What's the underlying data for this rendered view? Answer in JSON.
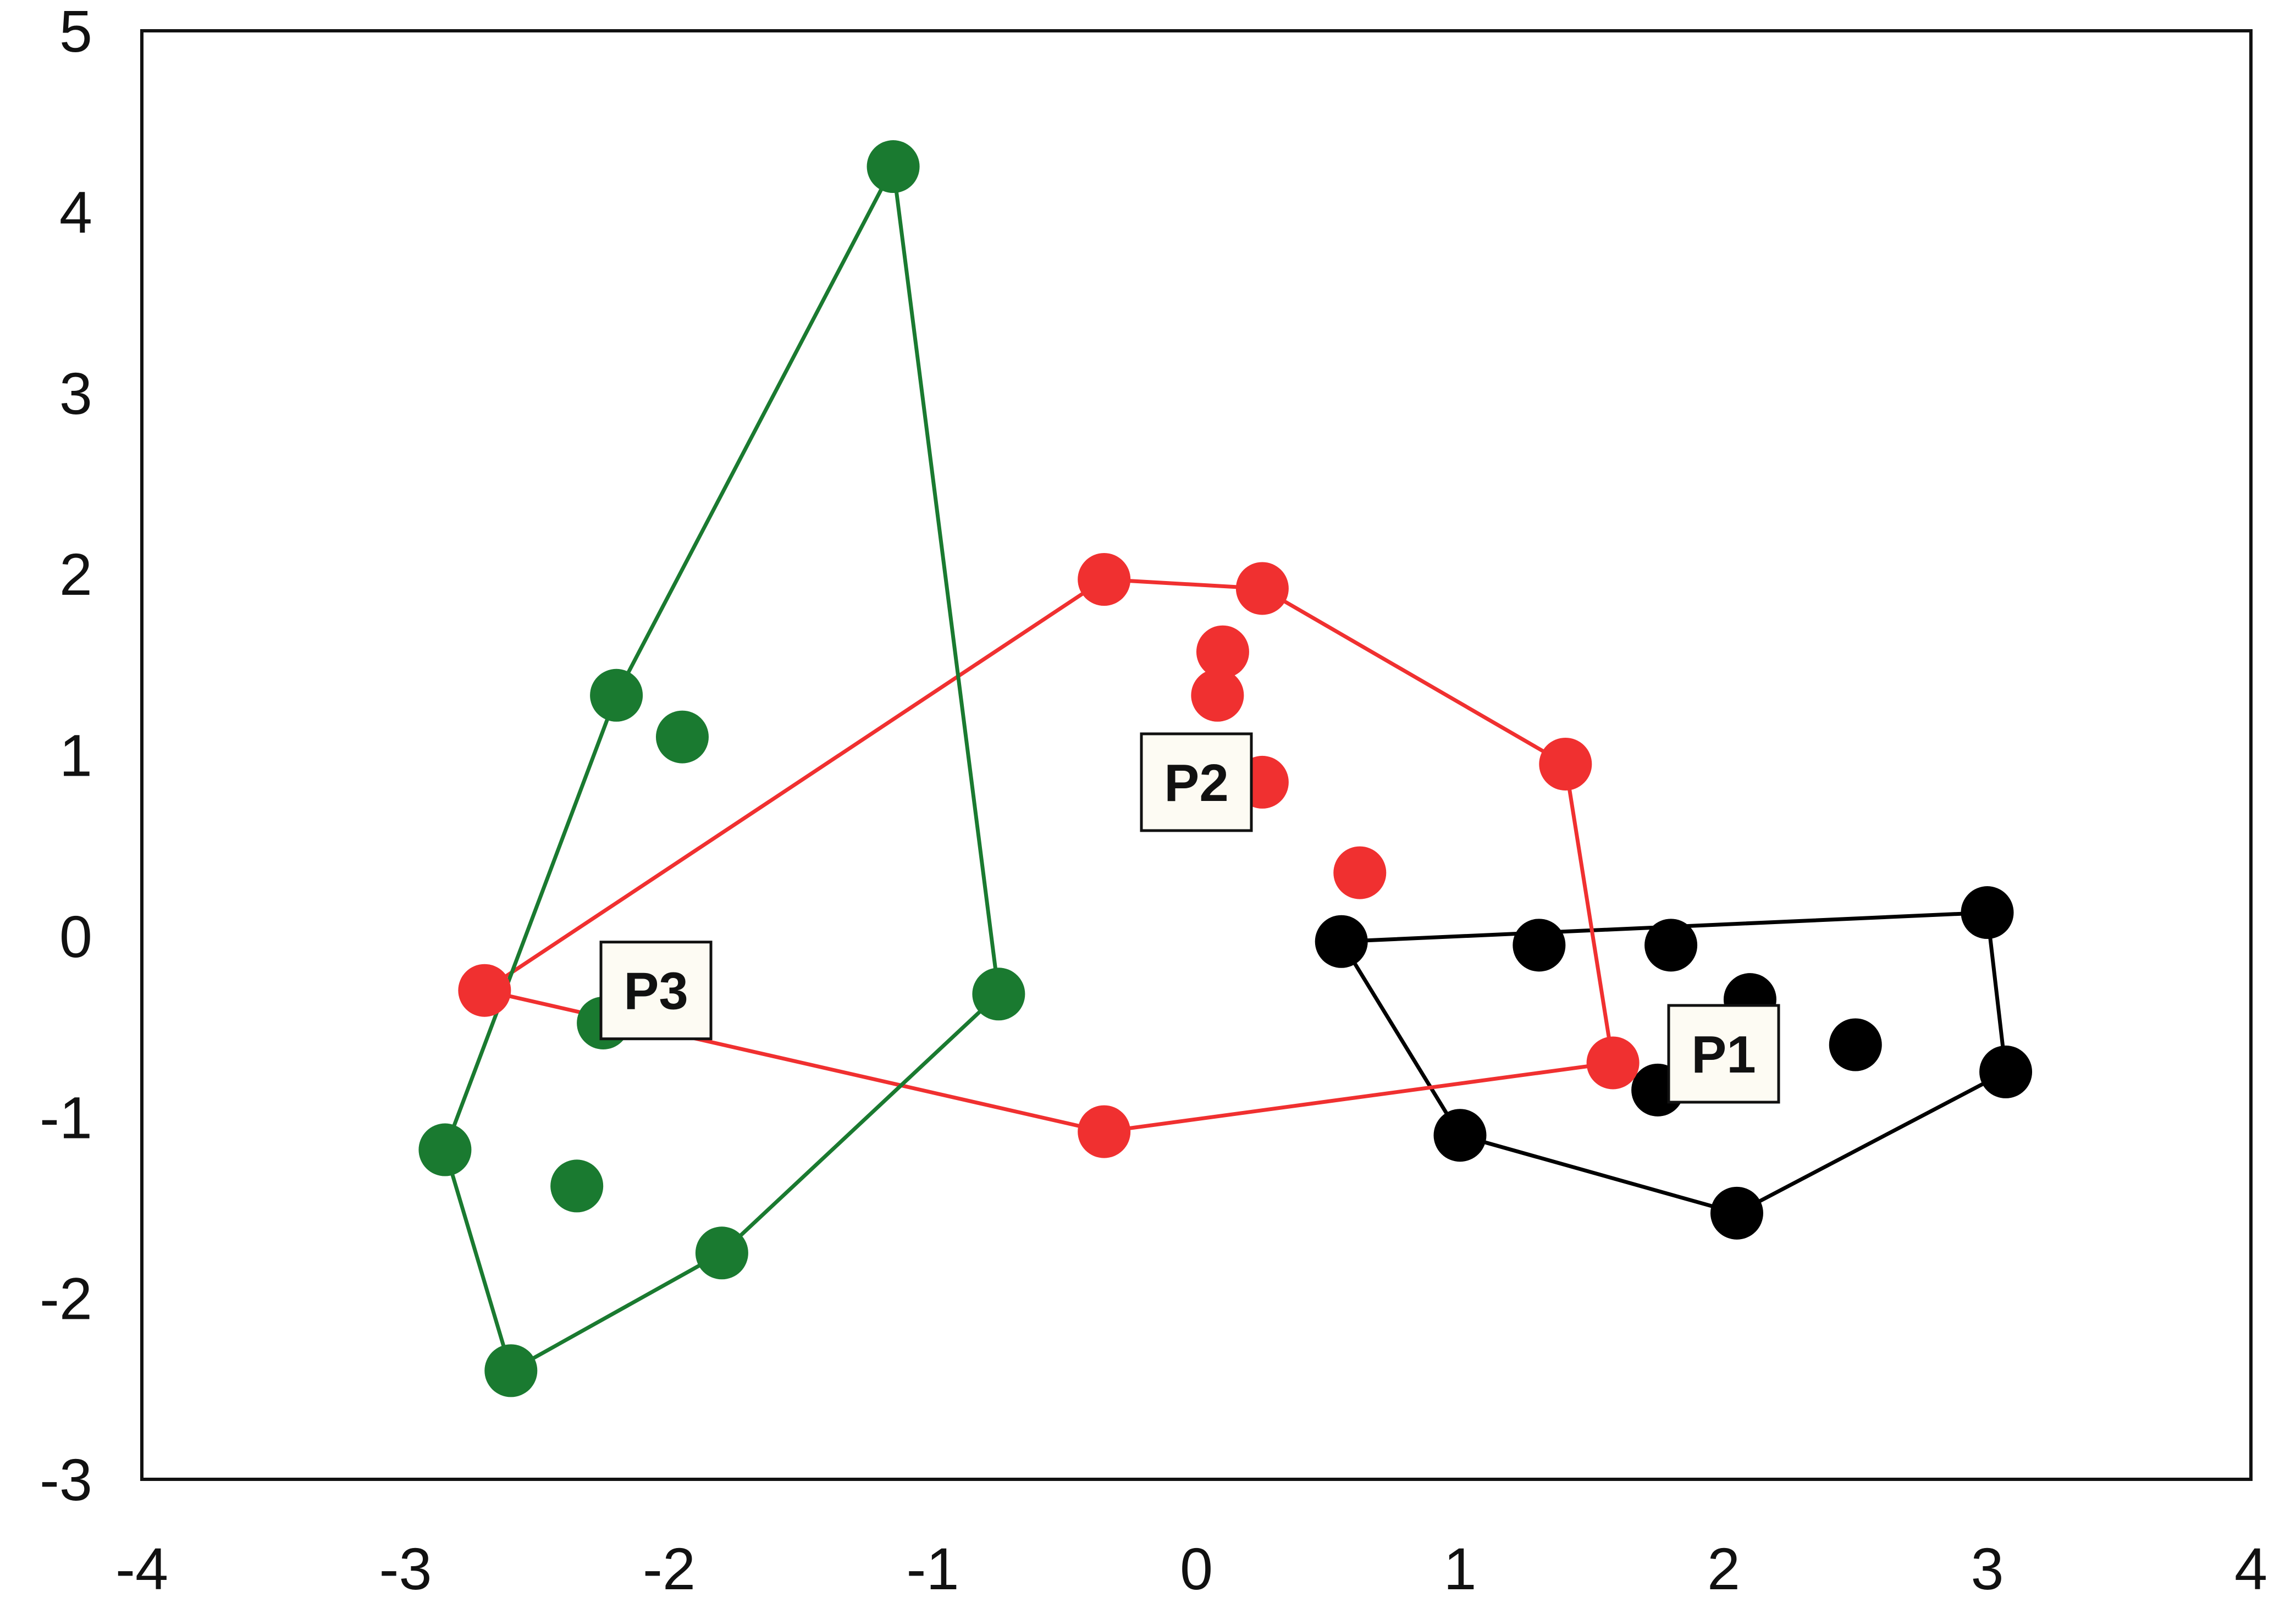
{
  "chart_data": {
    "type": "scatter",
    "title": "",
    "xlabel": "",
    "ylabel": "",
    "xlim": [
      -4,
      4
    ],
    "ylim": [
      -3,
      5
    ],
    "xticks": [
      "-4",
      "-3",
      "-2",
      "-1",
      "0",
      "1",
      "2",
      "3",
      "4"
    ],
    "yticks": [
      "-3",
      "-2",
      "-1",
      "0",
      "1",
      "2",
      "3",
      "4",
      "5"
    ],
    "grid": false,
    "legend": "none",
    "hull_outlines": true,
    "series": [
      {
        "label": "P1",
        "color": "#000000",
        "label_position": [
          2.0,
          -0.65
        ],
        "points": [
          [
            0.55,
            -0.03
          ],
          [
            1.3,
            -0.05
          ],
          [
            1.8,
            -0.05
          ],
          [
            2.1,
            -0.35
          ],
          [
            2.5,
            -0.6
          ],
          [
            1.75,
            -0.85
          ],
          [
            1.0,
            -1.1
          ],
          [
            2.05,
            -1.53
          ],
          [
            3.0,
            0.13
          ],
          [
            3.07,
            -0.75
          ]
        ],
        "hull": [
          [
            0.55,
            -0.03
          ],
          [
            3.0,
            0.13
          ],
          [
            3.07,
            -0.75
          ],
          [
            2.05,
            -1.53
          ],
          [
            1.0,
            -1.1
          ]
        ]
      },
      {
        "label": "P2",
        "color": "#f03030",
        "label_position": [
          0.0,
          0.85
        ],
        "points": [
          [
            -0.35,
            1.97
          ],
          [
            0.25,
            1.92
          ],
          [
            0.1,
            1.57
          ],
          [
            0.08,
            1.33
          ],
          [
            0.25,
            0.85
          ],
          [
            0.62,
            0.35
          ],
          [
            1.4,
            0.95
          ],
          [
            1.58,
            -0.7
          ],
          [
            -0.35,
            -1.08
          ],
          [
            -2.7,
            -0.3
          ]
        ],
        "hull": [
          [
            -0.35,
            1.97
          ],
          [
            0.25,
            1.92
          ],
          [
            1.4,
            0.95
          ],
          [
            1.58,
            -0.7
          ],
          [
            -0.35,
            -1.08
          ],
          [
            -2.7,
            -0.3
          ]
        ]
      },
      {
        "label": "P3",
        "color": "#1a7a30",
        "label_position": [
          -2.05,
          -0.3
        ],
        "points": [
          [
            -1.15,
            4.25
          ],
          [
            -2.2,
            1.33
          ],
          [
            -1.95,
            1.1
          ],
          [
            -0.75,
            -0.32
          ],
          [
            -2.25,
            -0.48
          ],
          [
            -2.85,
            -1.18
          ],
          [
            -2.35,
            -1.38
          ],
          [
            -1.8,
            -1.75
          ],
          [
            -2.6,
            -2.4
          ]
        ],
        "hull": [
          [
            -1.15,
            4.25
          ],
          [
            -0.75,
            -0.32
          ],
          [
            -1.8,
            -1.75
          ],
          [
            -2.6,
            -2.4
          ],
          [
            -2.85,
            -1.18
          ],
          [
            -2.2,
            1.33
          ]
        ]
      }
    ]
  }
}
